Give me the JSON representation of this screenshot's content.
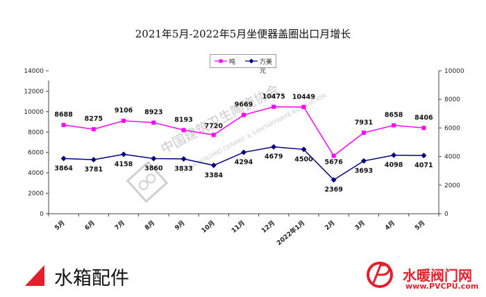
{
  "chart_data": {
    "type": "line",
    "title": "2021年5月-2022年5月坐便器盖圈出口月增长",
    "categories": [
      "5月",
      "6月",
      "7月",
      "8月",
      "9月",
      "10月",
      "11月",
      "12月",
      "2022年1月",
      "2月",
      "3月",
      "4月",
      "5月"
    ],
    "series": [
      {
        "name": "吨",
        "axis": "left",
        "color": "#ff00ff",
        "marker": "square",
        "values": [
          8688,
          8275,
          9106,
          8923,
          8193,
          7720,
          9669,
          10475,
          10449,
          5676,
          7931,
          8658,
          8406
        ]
      },
      {
        "name": "万美元",
        "axis": "right",
        "color": "#000080",
        "marker": "diamond",
        "values": [
          3864,
          3781,
          4158,
          3860,
          3833,
          3384,
          4294,
          4679,
          4500,
          2369,
          3693,
          4098,
          4071
        ]
      }
    ],
    "y_left": {
      "min": 0,
      "max": 14000,
      "step": 2000,
      "ticks": [
        "0",
        "2000",
        "4000",
        "6000",
        "8000",
        "10000",
        "12000",
        "14000"
      ]
    },
    "y_right": {
      "min": 0,
      "max": 10000,
      "step": 2000,
      "ticks": [
        "0",
        "2000",
        "4000",
        "6000",
        "8000",
        "10000"
      ]
    },
    "grid": false,
    "legend_position": "top-center"
  },
  "watermark": {
    "text": "中国建筑卫生陶瓷协会",
    "subtext": "CHINA BUILDING CERAMIC & SANITARYWARE ASSOCIATION"
  },
  "footer": {
    "left_text": "水箱配件",
    "brand_name": "水暖阀门网",
    "brand_url": "www.PVCPU.com"
  },
  "colors": {
    "accent_red": "#e3202a",
    "magenta": "#ff00ff",
    "navy": "#000080"
  }
}
